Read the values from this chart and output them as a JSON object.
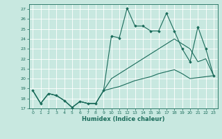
{
  "xlabel": "Humidex (Indice chaleur)",
  "xlim": [
    -0.5,
    23.5
  ],
  "ylim": [
    17,
    27.5
  ],
  "yticks": [
    17,
    18,
    19,
    20,
    21,
    22,
    23,
    24,
    25,
    26,
    27
  ],
  "xticks": [
    0,
    1,
    2,
    3,
    4,
    5,
    6,
    7,
    8,
    9,
    10,
    11,
    12,
    13,
    14,
    15,
    16,
    17,
    18,
    19,
    20,
    21,
    22,
    23
  ],
  "background_color": "#c8e8e0",
  "grid_color": "#ffffff",
  "line_color": "#1a6b5a",
  "line1_x": [
    0,
    1,
    2,
    3,
    4,
    5,
    6,
    7,
    8,
    9,
    10,
    11,
    12,
    13,
    14,
    15,
    16,
    17,
    18,
    19,
    20,
    21,
    22,
    23
  ],
  "line1_y": [
    18.8,
    17.5,
    18.5,
    18.3,
    17.8,
    17.1,
    17.7,
    17.5,
    17.5,
    18.8,
    24.3,
    24.1,
    27.1,
    25.3,
    25.3,
    24.8,
    24.8,
    26.6,
    24.8,
    23.0,
    21.7,
    25.2,
    23.0,
    20.3
  ],
  "line2_x": [
    0,
    1,
    2,
    3,
    4,
    5,
    6,
    7,
    8,
    9,
    10,
    11,
    12,
    13,
    14,
    15,
    16,
    17,
    18,
    19,
    20,
    21,
    22,
    23
  ],
  "line2_y": [
    18.8,
    17.5,
    18.5,
    18.3,
    17.8,
    17.1,
    17.7,
    17.5,
    17.5,
    18.8,
    20.0,
    20.5,
    21.0,
    21.5,
    22.0,
    22.5,
    23.0,
    23.5,
    24.0,
    23.5,
    23.0,
    21.7,
    22.0,
    20.3
  ],
  "line3_x": [
    0,
    1,
    2,
    3,
    4,
    5,
    6,
    7,
    8,
    9,
    10,
    11,
    12,
    13,
    14,
    15,
    16,
    17,
    18,
    19,
    20,
    21,
    22,
    23
  ],
  "line3_y": [
    18.8,
    17.5,
    18.5,
    18.3,
    17.8,
    17.1,
    17.7,
    17.5,
    17.5,
    18.8,
    19.0,
    19.2,
    19.5,
    19.8,
    20.0,
    20.2,
    20.5,
    20.7,
    20.9,
    20.5,
    20.0,
    20.1,
    20.2,
    20.3
  ]
}
